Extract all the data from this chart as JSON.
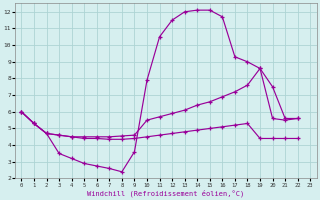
{
  "xlabel": "Windchill (Refroidissement éolien,°C)",
  "xlim": [
    -0.5,
    23.5
  ],
  "ylim": [
    2,
    12.5
  ],
  "xticks": [
    0,
    1,
    2,
    3,
    4,
    5,
    6,
    7,
    8,
    9,
    10,
    11,
    12,
    13,
    14,
    15,
    16,
    17,
    18,
    19,
    20,
    21,
    22,
    23
  ],
  "yticks": [
    2,
    3,
    4,
    5,
    6,
    7,
    8,
    9,
    10,
    11,
    12
  ],
  "bg_color": "#d6efef",
  "grid_color": "#aed4d4",
  "line_color": "#990099",
  "line1_x": [
    0,
    1,
    2,
    3,
    4,
    5,
    6,
    7,
    8,
    9,
    10,
    11,
    12,
    13,
    14,
    15,
    16,
    17,
    18,
    19,
    20,
    21,
    22
  ],
  "line1_y": [
    6.0,
    5.3,
    4.7,
    3.5,
    3.2,
    2.9,
    2.75,
    2.6,
    2.4,
    3.6,
    7.9,
    10.5,
    11.5,
    12.0,
    12.1,
    12.1,
    11.7,
    9.3,
    9.0,
    8.6,
    5.6,
    5.5,
    5.6
  ],
  "line2_x": [
    0,
    1,
    2,
    3,
    4,
    5,
    6,
    7,
    8,
    9,
    10,
    11,
    12,
    13,
    14,
    15,
    16,
    17,
    18,
    19,
    20,
    21,
    22
  ],
  "line2_y": [
    6.0,
    5.3,
    4.7,
    4.6,
    4.5,
    4.5,
    4.5,
    4.5,
    4.55,
    4.6,
    5.5,
    5.7,
    5.9,
    6.1,
    6.4,
    6.6,
    6.9,
    7.2,
    7.6,
    8.6,
    7.5,
    5.6,
    5.6
  ],
  "line3_x": [
    0,
    1,
    2,
    3,
    4,
    5,
    6,
    7,
    8,
    9,
    10,
    11,
    12,
    13,
    14,
    15,
    16,
    17,
    18,
    19,
    20,
    21,
    22
  ],
  "line3_y": [
    6.0,
    5.3,
    4.7,
    4.6,
    4.5,
    4.4,
    4.4,
    4.35,
    4.35,
    4.4,
    4.5,
    4.6,
    4.7,
    4.8,
    4.9,
    5.0,
    5.1,
    5.2,
    5.3,
    4.4,
    4.4,
    4.4,
    4.4
  ]
}
